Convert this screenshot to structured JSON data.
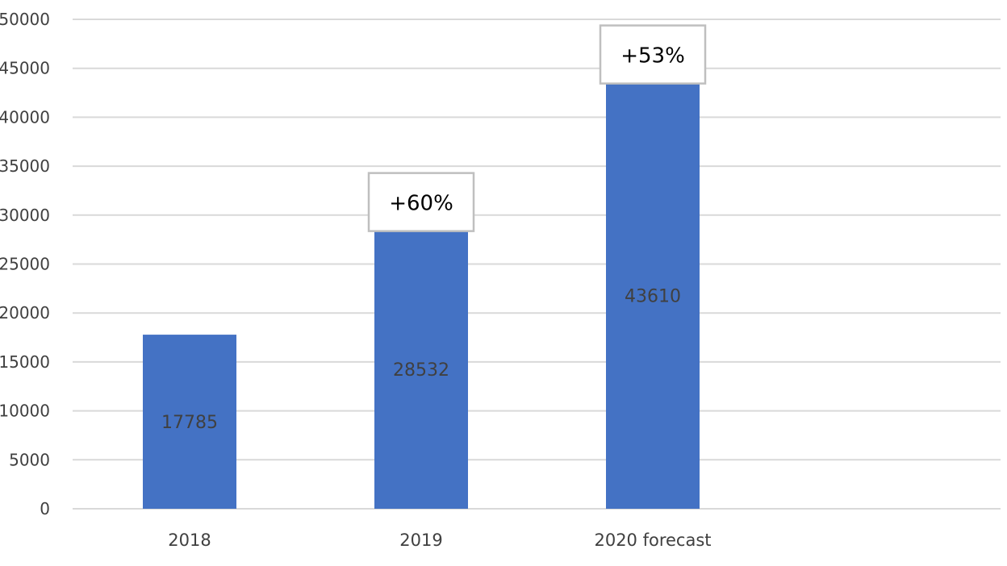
{
  "chart_data": {
    "type": "bar",
    "categories": [
      "2018",
      "2019",
      "2020 forecast"
    ],
    "values": [
      17785,
      28532,
      43610
    ],
    "data_labels": [
      "17785",
      "28532",
      "43610"
    ],
    "y_ticks": [
      0,
      5000,
      10000,
      15000,
      20000,
      25000,
      30000,
      35000,
      40000,
      45000,
      50000
    ],
    "y_tick_labels": [
      "0",
      "5000",
      "10000",
      "15000",
      "20000",
      "25000",
      "30000",
      "35000",
      "40000",
      "45000",
      "50000"
    ],
    "ylim": [
      0,
      50000
    ],
    "grid": true,
    "bar_color": "#4472C4",
    "grid_color": "#D9D9D9",
    "annotations": [
      {
        "category": "2019",
        "text": "+60%"
      },
      {
        "category": "2020 forecast",
        "text": "+53%"
      }
    ]
  }
}
